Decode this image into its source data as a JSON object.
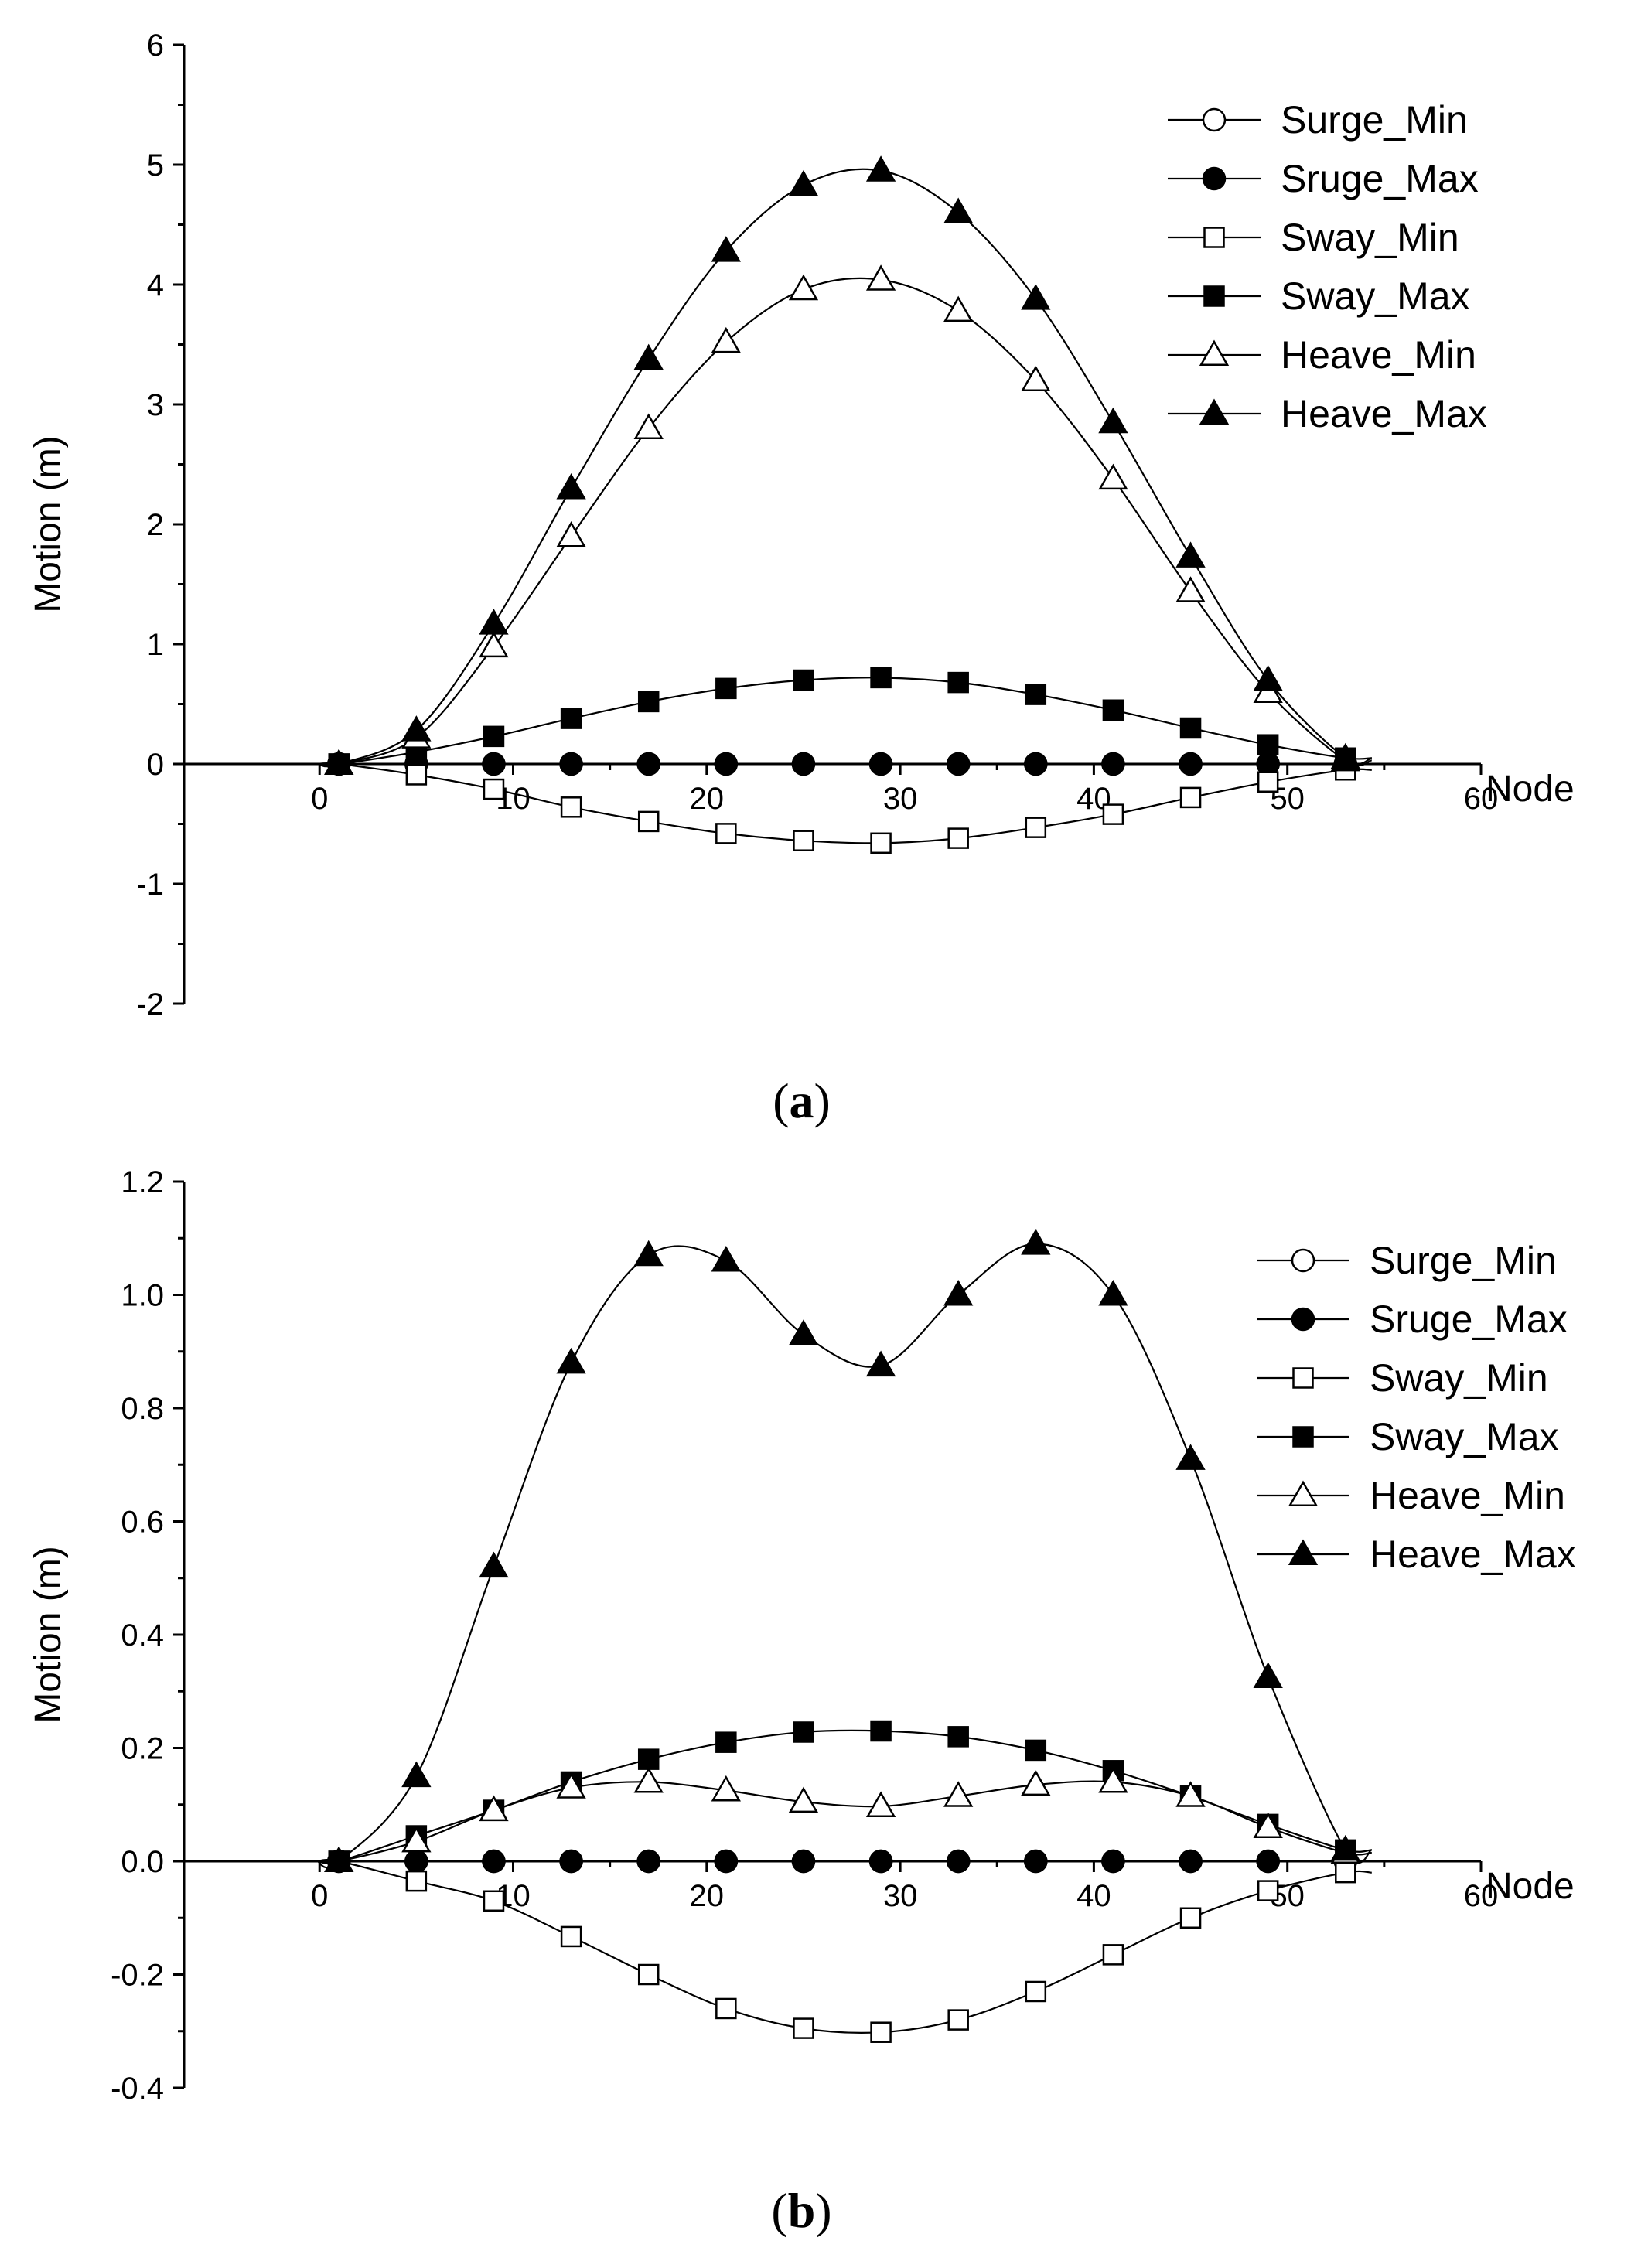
{
  "chart_data": [
    {
      "id": "a",
      "type": "line",
      "caption": "(a)",
      "xlabel": "Node",
      "ylabel": "Motion (m)",
      "xlim": [
        -7,
        60
      ],
      "ylim": [
        -2,
        6
      ],
      "xticks": [
        0,
        10,
        20,
        30,
        40,
        50,
        60
      ],
      "yticks": [
        -2,
        -1,
        0,
        1,
        2,
        3,
        4,
        5,
        6
      ],
      "x": [
        1,
        5,
        9,
        13,
        17,
        21,
        25,
        29,
        33,
        37,
        41,
        45,
        49,
        53
      ],
      "series": [
        {
          "name": "Surge_Min",
          "marker": "circle-open",
          "values": [
            0,
            0,
            0,
            0,
            0,
            0,
            0,
            0,
            0,
            0,
            0,
            0,
            0,
            0
          ]
        },
        {
          "name": "Sruge_Max",
          "marker": "circle-filled",
          "values": [
            0,
            0,
            0,
            0,
            0,
            0,
            0,
            0,
            0,
            0,
            0,
            0,
            0,
            0
          ]
        },
        {
          "name": "Sway_Min",
          "marker": "square-open",
          "values": [
            0,
            -0.09,
            -0.21,
            -0.36,
            -0.48,
            -0.58,
            -0.64,
            -0.66,
            -0.62,
            -0.53,
            -0.42,
            -0.28,
            -0.15,
            -0.05
          ]
        },
        {
          "name": "Sway_Max",
          "marker": "square-filled",
          "values": [
            0,
            0.1,
            0.23,
            0.38,
            0.52,
            0.63,
            0.7,
            0.72,
            0.68,
            0.58,
            0.45,
            0.3,
            0.16,
            0.05
          ]
        },
        {
          "name": "Heave_Min",
          "marker": "triangle-open",
          "values": [
            0,
            0.22,
            0.98,
            1.9,
            2.8,
            3.52,
            3.96,
            4.04,
            3.78,
            3.2,
            2.38,
            1.44,
            0.6,
            0.03
          ]
        },
        {
          "name": "Heave_Max",
          "marker": "triangle-filled",
          "values": [
            0,
            0.28,
            1.17,
            2.3,
            3.38,
            4.28,
            4.83,
            4.95,
            4.6,
            3.88,
            2.85,
            1.73,
            0.7,
            0.05
          ]
        }
      ]
    },
    {
      "id": "b",
      "type": "line",
      "caption": "(b)",
      "xlabel": "Node",
      "ylabel": "Motion (m)",
      "xlim": [
        -7,
        60
      ],
      "ylim": [
        -0.4,
        1.2
      ],
      "xticks": [
        0,
        10,
        20,
        30,
        40,
        50,
        60
      ],
      "yticks": [
        -0.4,
        -0.2,
        0.0,
        0.2,
        0.4,
        0.6,
        0.8,
        1.0,
        1.2
      ],
      "yticklabels": [
        "-0.4",
        "-0.2",
        "0.0",
        "0.2",
        "0.4",
        "0.6",
        "0.8",
        "1.0",
        "1.2"
      ],
      "x": [
        1,
        5,
        9,
        13,
        17,
        21,
        25,
        29,
        33,
        37,
        41,
        45,
        49,
        53
      ],
      "series": [
        {
          "name": "Surge_Min",
          "marker": "circle-open",
          "values": [
            0,
            0,
            0,
            0,
            0,
            0,
            0,
            0,
            0,
            0,
            0,
            0,
            0,
            0
          ]
        },
        {
          "name": "Sruge_Max",
          "marker": "circle-filled",
          "values": [
            0,
            0,
            0,
            0,
            0,
            0,
            0,
            0,
            0,
            0,
            0,
            0,
            0,
            0
          ]
        },
        {
          "name": "Sway_Min",
          "marker": "square-open",
          "values": [
            0,
            -0.035,
            -0.07,
            -0.133,
            -0.2,
            -0.26,
            -0.295,
            -0.302,
            -0.28,
            -0.23,
            -0.165,
            -0.1,
            -0.052,
            -0.02
          ]
        },
        {
          "name": "Sway_Max",
          "marker": "square-filled",
          "values": [
            0,
            0.045,
            0.09,
            0.14,
            0.18,
            0.21,
            0.228,
            0.23,
            0.22,
            0.196,
            0.16,
            0.115,
            0.065,
            0.02
          ]
        },
        {
          "name": "Heave_Min",
          "marker": "triangle-open",
          "values": [
            0,
            0.035,
            0.09,
            0.13,
            0.14,
            0.125,
            0.105,
            0.097,
            0.115,
            0.135,
            0.14,
            0.115,
            0.06,
            0.015
          ]
        },
        {
          "name": "Heave_Max",
          "marker": "triangle-filled",
          "values": [
            0,
            0.15,
            0.52,
            0.88,
            1.07,
            1.06,
            0.93,
            0.875,
            1.0,
            1.09,
            1.0,
            0.71,
            0.325,
            0.02
          ]
        }
      ]
    }
  ]
}
